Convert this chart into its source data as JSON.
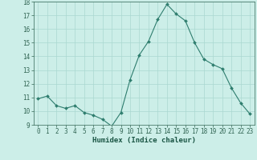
{
  "x": [
    0,
    1,
    2,
    3,
    4,
    5,
    6,
    7,
    8,
    9,
    10,
    11,
    12,
    13,
    14,
    15,
    16,
    17,
    18,
    19,
    20,
    21,
    22,
    23
  ],
  "y": [
    10.9,
    11.1,
    10.4,
    10.2,
    10.4,
    9.9,
    9.7,
    9.4,
    8.9,
    9.9,
    12.3,
    14.1,
    15.1,
    16.7,
    17.8,
    17.1,
    16.6,
    15.0,
    13.8,
    13.4,
    13.1,
    11.7,
    10.6,
    9.8
  ],
  "line_color": "#2e7d6e",
  "marker": "D",
  "marker_size": 2.0,
  "bg_color": "#cceee8",
  "grid_color": "#aad8d0",
  "xlabel": "Humidex (Indice chaleur)",
  "ylim": [
    9,
    18
  ],
  "yticks": [
    9,
    10,
    11,
    12,
    13,
    14,
    15,
    16,
    17,
    18
  ],
  "xticks": [
    0,
    1,
    2,
    3,
    4,
    5,
    6,
    7,
    8,
    9,
    10,
    11,
    12,
    13,
    14,
    15,
    16,
    17,
    18,
    19,
    20,
    21,
    22,
    23
  ],
  "xtick_labels": [
    "0",
    "1",
    "2",
    "3",
    "4",
    "5",
    "6",
    "7",
    "8",
    "9",
    "10",
    "11",
    "12",
    "13",
    "14",
    "15",
    "16",
    "17",
    "18",
    "19",
    "20",
    "21",
    "22",
    "23"
  ],
  "xlabel_fontsize": 6.5,
  "tick_fontsize": 5.5,
  "spine_color": "#336655",
  "tick_color": "#336655",
  "label_color": "#1a5544"
}
